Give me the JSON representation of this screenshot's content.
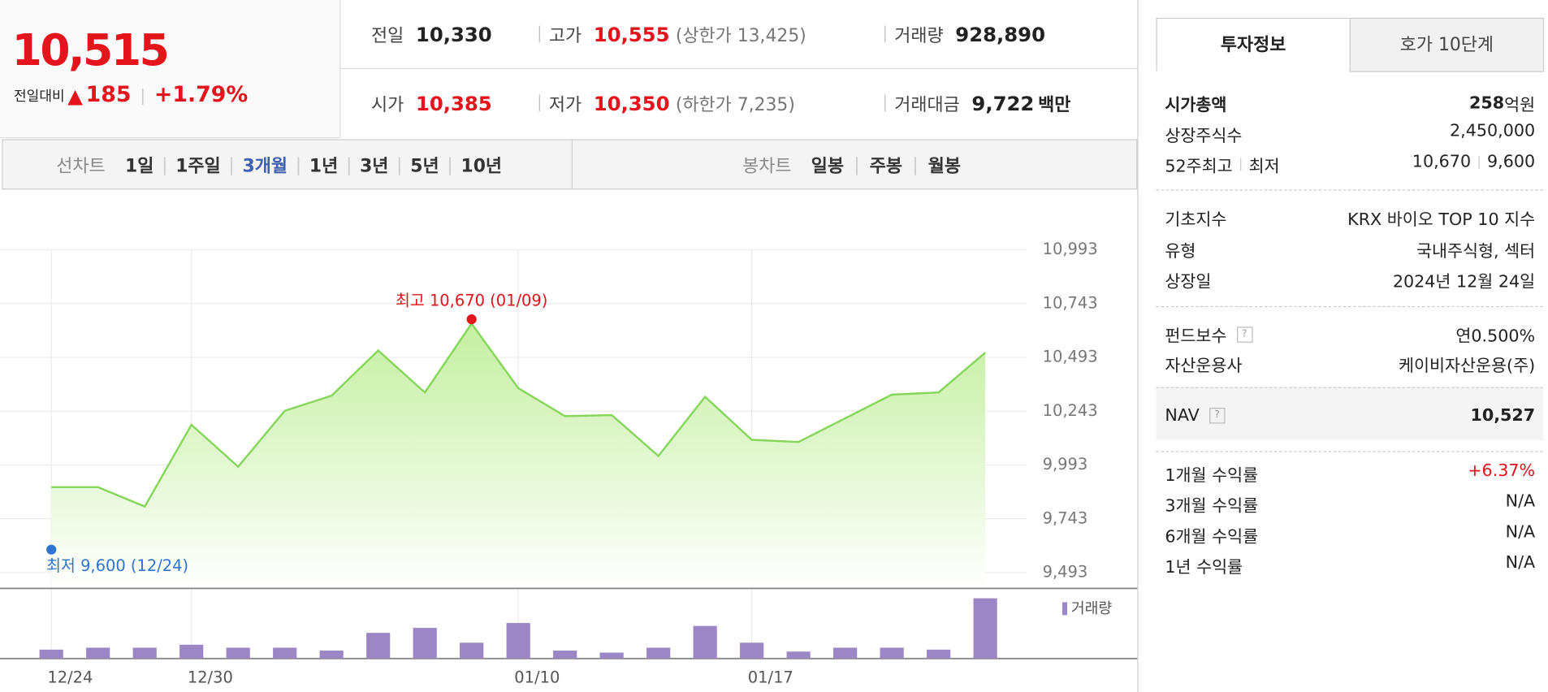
{
  "header": {
    "price": "10,515",
    "change_label": "전일대비",
    "change": "185",
    "change_pct": "+1.79%"
  },
  "quotes": [
    {
      "label": "전일",
      "value": "10,330"
    },
    {
      "label": "고가",
      "value": "10,555",
      "note": "(상한가 13,425)"
    },
    {
      "label": "거래량",
      "value": "928,890"
    },
    {
      "label": "시가",
      "value": "10,385"
    },
    {
      "label": "저가",
      "value": "10,350",
      "note": "(하한가 7,235)"
    },
    {
      "label": "거래대금",
      "value": "9,722",
      "unit": "백만"
    }
  ],
  "chart_tabs": {
    "line_label": "선차트",
    "line_periods": [
      "1일",
      "1주일",
      "3개월",
      "1년",
      "3년",
      "5년",
      "10년"
    ],
    "line_active": 2,
    "candle_label": "봉차트",
    "candle_periods": [
      "일봉",
      "주봉",
      "월봉"
    ]
  },
  "chart_data": [
    {
      "type": "line",
      "color": "#86d65c",
      "values": [
        9890,
        9890,
        9800,
        10180,
        9985,
        10245,
        10315,
        10525,
        10330,
        10650,
        10350,
        10220,
        10225,
        10035,
        10310,
        10110,
        10100,
        10210,
        10320,
        10330,
        10515
      ],
      "ylim": [
        9493,
        10993
      ],
      "yticks": [
        {
          "value": 9493,
          "label": "9,493"
        },
        {
          "value": 9743,
          "label": "9,743"
        },
        {
          "value": 9993,
          "label": "9,993"
        },
        {
          "value": 10243,
          "label": "10,243"
        },
        {
          "value": 10493,
          "label": "10,493"
        },
        {
          "value": 10743,
          "label": "10,743"
        },
        {
          "value": 10993,
          "label": "10,993"
        }
      ],
      "grid": true,
      "annotations": [
        {
          "text": "최고 10,670 (01/09)",
          "value": 10670,
          "index": 9,
          "color": "#e4131c"
        },
        {
          "text": "최저 9,600 (12/24)",
          "value": 9600,
          "index": 0,
          "color": "#2f74d0"
        }
      ]
    },
    {
      "type": "bar",
      "name": "거래량",
      "color": "#9b86c6",
      "categories": [
        "12/24",
        null,
        null,
        "12/30",
        null,
        null,
        null,
        null,
        null,
        null,
        "01/10",
        null,
        null,
        null,
        null,
        "01/17",
        null,
        null,
        null,
        null,
        null
      ],
      "values": [
        137000,
        167000,
        167000,
        213000,
        167000,
        167000,
        122000,
        396000,
        472000,
        244000,
        548000,
        122000,
        91000,
        167000,
        503000,
        244000,
        107000,
        167000,
        167000,
        137000,
        928890
      ]
    }
  ],
  "info_tabs": [
    "투자정보",
    "호가 10단계"
  ],
  "info_groups": [
    [
      {
        "label": "시가총액",
        "value": "258",
        "unit": "억원",
        "bold": true
      },
      {
        "label": "상장주식수",
        "value": "2,450,000"
      },
      {
        "label": "52주최고",
        "label2": "최저",
        "value": "10,670",
        "value2": "9,600"
      }
    ],
    [
      {
        "label": "기초지수",
        "value": "KRX 바이오 TOP 10 지수"
      },
      {
        "label": "유형",
        "value": "국내주식형, 섹터"
      },
      {
        "label": "상장일",
        "value": "2024년 12월 24일"
      }
    ],
    [
      {
        "label": "펀드보수",
        "help": true,
        "value": "연0.500%"
      },
      {
        "label": "자산운용사",
        "value": "케이비자산운용(주)"
      }
    ],
    [
      {
        "label": "NAV",
        "help": true,
        "value": "10,527",
        "bold": true
      }
    ],
    [
      {
        "label": "1개월 수익률",
        "value": "+6.37%",
        "color": "#e4131c"
      },
      {
        "label": "3개월 수익률",
        "value": "N/A"
      },
      {
        "label": "6개월 수익률",
        "value": "N/A"
      },
      {
        "label": "1년 수익률",
        "value": "N/A"
      }
    ]
  ]
}
